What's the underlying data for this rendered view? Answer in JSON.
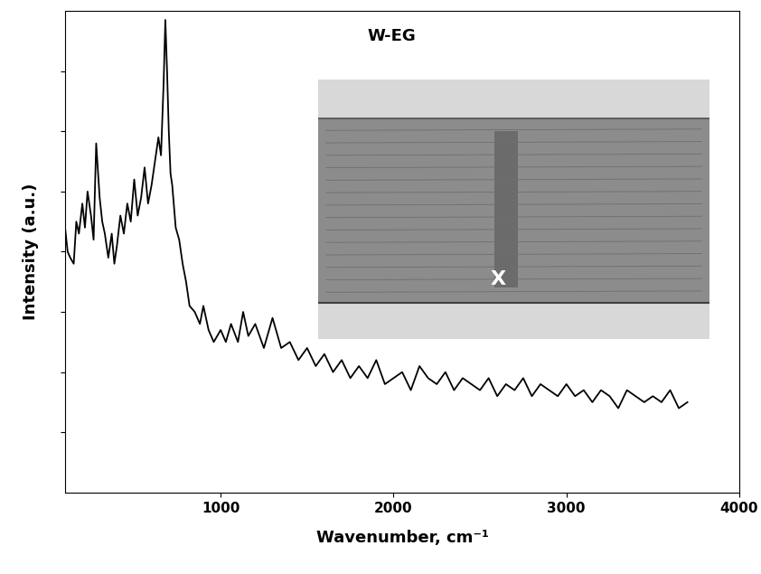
{
  "chart_data": {
    "type": "line",
    "title": "W-EG",
    "x_label": "Wavenumber, cm⁻¹",
    "y_label": "Intensity (a.u.)",
    "annotations": [
      "X"
    ],
    "x": [
      100,
      115,
      130,
      150,
      165,
      180,
      200,
      215,
      230,
      250,
      265,
      280,
      300,
      315,
      330,
      350,
      370,
      385,
      400,
      420,
      440,
      460,
      480,
      500,
      520,
      540,
      560,
      580,
      600,
      620,
      640,
      655,
      670,
      680,
      690,
      700,
      710,
      720,
      740,
      760,
      780,
      800,
      820,
      850,
      880,
      900,
      930,
      960,
      1000,
      1030,
      1060,
      1100,
      1130,
      1160,
      1200,
      1250,
      1300,
      1350,
      1400,
      1450,
      1500,
      1550,
      1600,
      1650,
      1700,
      1750,
      1800,
      1850,
      1900,
      1950,
      2000,
      2050,
      2100,
      2150,
      2200,
      2250,
      2300,
      2350,
      2400,
      2450,
      2500,
      2550,
      2600,
      2650,
      2700,
      2750,
      2800,
      2850,
      2900,
      2950,
      3000,
      3050,
      3100,
      3150,
      3200,
      3250,
      3300,
      3350,
      3400,
      3450,
      3500,
      3550,
      3600,
      3650,
      3700
    ],
    "series": [
      {
        "name": "W-EG",
        "color": "#000000",
        "values": [
          4.4,
          4.0,
          3.9,
          3.8,
          4.5,
          4.3,
          4.8,
          4.4,
          5.0,
          4.6,
          4.2,
          5.8,
          4.9,
          4.5,
          4.3,
          3.9,
          4.3,
          3.8,
          4.1,
          4.6,
          4.3,
          4.8,
          4.5,
          5.2,
          4.6,
          4.9,
          5.4,
          4.8,
          5.1,
          5.5,
          5.9,
          5.6,
          6.8,
          7.85,
          7.0,
          6.0,
          5.3,
          5.1,
          4.4,
          4.2,
          3.8,
          3.5,
          3.1,
          3.0,
          2.8,
          3.1,
          2.7,
          2.5,
          2.7,
          2.5,
          2.8,
          2.5,
          3.0,
          2.6,
          2.8,
          2.4,
          2.9,
          2.4,
          2.5,
          2.2,
          2.4,
          2.1,
          2.3,
          2.0,
          2.2,
          1.9,
          2.1,
          1.9,
          2.2,
          1.8,
          1.9,
          2.0,
          1.7,
          2.1,
          1.9,
          1.8,
          2.0,
          1.7,
          1.9,
          1.8,
          1.7,
          1.9,
          1.6,
          1.8,
          1.7,
          1.9,
          1.6,
          1.8,
          1.7,
          1.6,
          1.8,
          1.6,
          1.7,
          1.5,
          1.7,
          1.6,
          1.4,
          1.7,
          1.6,
          1.5,
          1.6,
          1.5,
          1.7,
          1.4,
          1.5
        ]
      }
    ],
    "xlim": [
      100,
      4000
    ],
    "xticks": [
      1000,
      2000,
      3000,
      4000
    ],
    "ylim": [
      0,
      8
    ],
    "yticks": [
      1,
      2,
      3,
      4,
      5,
      6,
      7
    ],
    "tick_labels": "x",
    "grid": false
  }
}
